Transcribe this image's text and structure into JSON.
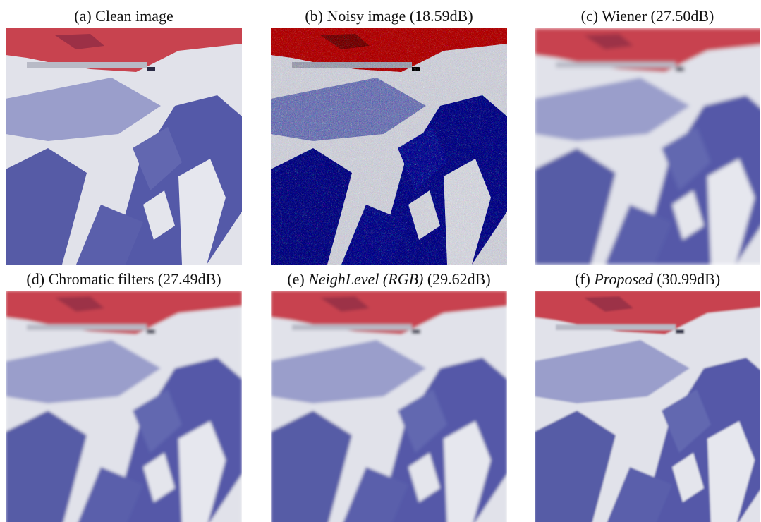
{
  "panels": [
    {
      "label": "(a)",
      "name": "Clean image"
    },
    {
      "label": "(b)",
      "name": "Noisy image",
      "psnr": "(18.59dB)"
    },
    {
      "label": "(c)",
      "name": "Wiener",
      "psnr": "(27.50dB)"
    },
    {
      "label": "(d)",
      "name": "Chromatic filters",
      "psnr": "(27.49dB)"
    },
    {
      "label": "(e)",
      "name": "NeighLevel (RGB)",
      "psnr": "(29.62dB)",
      "italic": true
    },
    {
      "label": "(f)",
      "name": "Proposed",
      "psnr": "(30.99dB)",
      "italic": true
    }
  ]
}
